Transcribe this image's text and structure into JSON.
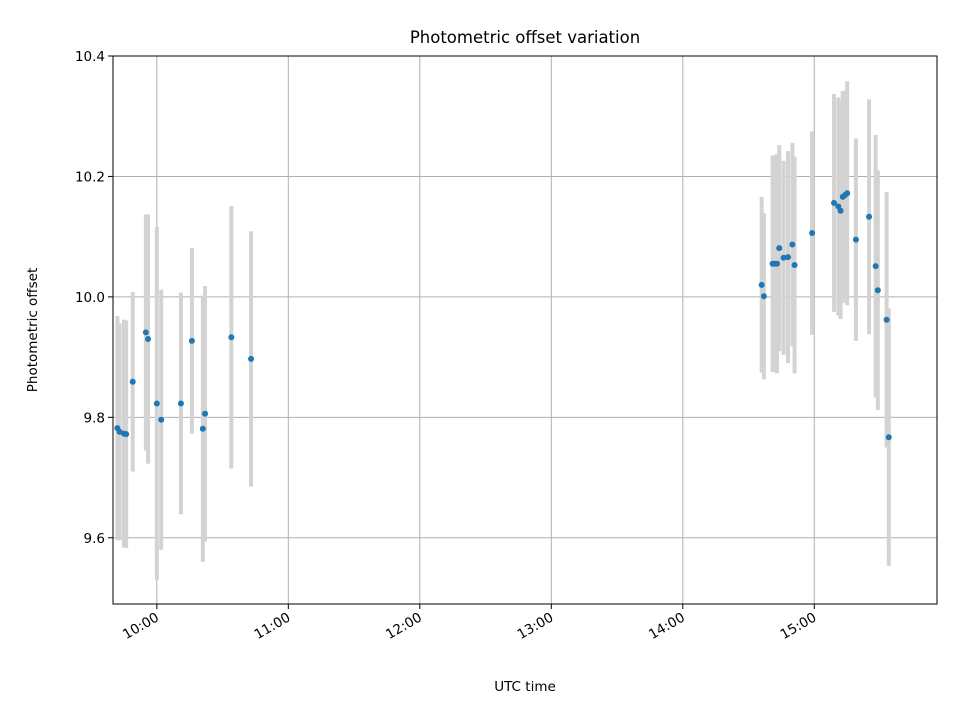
{
  "chart_data": {
    "type": "scatter",
    "title": "Photometric offset variation",
    "xlabel": "UTC time",
    "ylabel": "Photometric offset",
    "xlim": [
      "09:40",
      "15:56"
    ],
    "ylim": [
      9.49,
      10.4
    ],
    "grid": true,
    "x_ticks": [
      "10:00",
      "11:00",
      "12:00",
      "13:00",
      "14:00",
      "15:00"
    ],
    "y_ticks": [
      "9.6",
      "9.8",
      "10.0",
      "10.2",
      "10.4"
    ],
    "colors": {
      "point": "#1f77b4",
      "errorbar": "#d3d3d3",
      "grid": "#b0b0b0"
    },
    "points": [
      {
        "x": "09:42",
        "y": 9.782,
        "err": 0.186
      },
      {
        "x": "09:43",
        "y": 9.776,
        "err": 0.18
      },
      {
        "x": "09:45",
        "y": 9.773,
        "err": 0.189
      },
      {
        "x": "09:46",
        "y": 9.772,
        "err": 0.189
      },
      {
        "x": "09:49",
        "y": 9.859,
        "err": 0.149
      },
      {
        "x": "09:55",
        "y": 9.941,
        "err": 0.196
      },
      {
        "x": "09:56",
        "y": 9.93,
        "err": 0.207
      },
      {
        "x": "10:00",
        "y": 9.823,
        "err": 0.293
      },
      {
        "x": "10:02",
        "y": 9.796,
        "err": 0.216
      },
      {
        "x": "10:11",
        "y": 9.823,
        "err": 0.184
      },
      {
        "x": "10:16",
        "y": 9.927,
        "err": 0.154
      },
      {
        "x": "10:21",
        "y": 9.781,
        "err": 0.221
      },
      {
        "x": "10:22",
        "y": 9.806,
        "err": 0.212
      },
      {
        "x": "10:34",
        "y": 9.933,
        "err": 0.218
      },
      {
        "x": "10:43",
        "y": 9.897,
        "err": 0.212
      },
      {
        "x": "14:36",
        "y": 10.02,
        "err": 0.146
      },
      {
        "x": "14:37",
        "y": 10.001,
        "err": 0.138
      },
      {
        "x": "14:41",
        "y": 10.055,
        "err": 0.18
      },
      {
        "x": "14:42",
        "y": 10.055,
        "err": 0.18
      },
      {
        "x": "14:43",
        "y": 10.055,
        "err": 0.182
      },
      {
        "x": "14:44",
        "y": 10.081,
        "err": 0.171
      },
      {
        "x": "14:46",
        "y": 10.065,
        "err": 0.161
      },
      {
        "x": "14:48",
        "y": 10.066,
        "err": 0.176
      },
      {
        "x": "14:50",
        "y": 10.087,
        "err": 0.169
      },
      {
        "x": "14:51",
        "y": 10.053,
        "err": 0.18
      },
      {
        "x": "14:59",
        "y": 10.106,
        "err": 0.169
      },
      {
        "x": "15:09",
        "y": 10.156,
        "err": 0.181
      },
      {
        "x": "15:11",
        "y": 10.15,
        "err": 0.181
      },
      {
        "x": "15:12",
        "y": 10.143,
        "err": 0.18
      },
      {
        "x": "15:13",
        "y": 10.166,
        "err": 0.176
      },
      {
        "x": "15:14",
        "y": 10.169,
        "err": 0.173
      },
      {
        "x": "15:15",
        "y": 10.172,
        "err": 0.186
      },
      {
        "x": "15:19",
        "y": 10.095,
        "err": 0.168
      },
      {
        "x": "15:25",
        "y": 10.133,
        "err": 0.195
      },
      {
        "x": "15:28",
        "y": 10.051,
        "err": 0.218
      },
      {
        "x": "15:29",
        "y": 10.011,
        "err": 0.199
      },
      {
        "x": "15:33",
        "y": 9.962,
        "err": 0.212
      },
      {
        "x": "15:34",
        "y": 9.767,
        "err": 0.214
      }
    ]
  }
}
